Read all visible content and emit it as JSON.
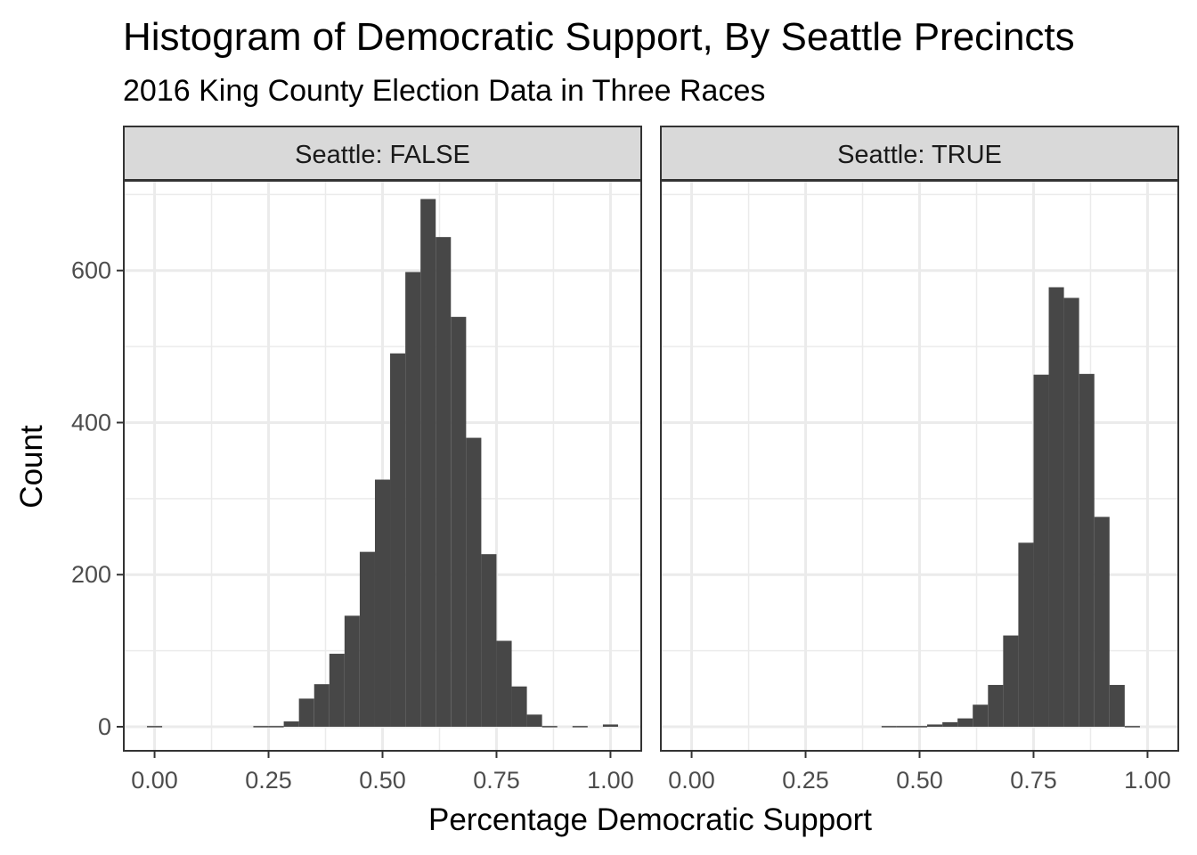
{
  "chart_data": {
    "type": "bar",
    "title": "Histogram of Democratic Support, By Seattle Precincts",
    "subtitle": "2016 King County Election Data in Three Races",
    "xlabel": "Percentage Democratic Support",
    "ylabel": "Count",
    "xlim": [
      -0.0675,
      1.0675
    ],
    "ylim": [
      0,
      725
    ],
    "x_ticks": [
      0,
      0.25,
      0.5,
      0.75,
      1.0
    ],
    "x_tick_labels": [
      "0.00",
      "0.25",
      "0.50",
      "0.75",
      "1.00"
    ],
    "y_ticks": [
      0,
      200,
      400,
      600
    ],
    "y_tick_labels": [
      "0",
      "200",
      "400",
      "600"
    ],
    "bin_width": 0.0333,
    "bin_centers": [
      0.0,
      0.0333,
      0.0667,
      0.1,
      0.1333,
      0.1667,
      0.2,
      0.2333,
      0.2667,
      0.3,
      0.3333,
      0.3667,
      0.4,
      0.4333,
      0.4667,
      0.5,
      0.5333,
      0.5667,
      0.6,
      0.6333,
      0.6667,
      0.7,
      0.7333,
      0.7667,
      0.8,
      0.8333,
      0.8667,
      0.9,
      0.9333,
      0.9667,
      1.0
    ],
    "grid": true,
    "facets": [
      {
        "label": "Seattle: FALSE",
        "counts": [
          1,
          0,
          0,
          0,
          0,
          0,
          0,
          1,
          1,
          7,
          37,
          56,
          96,
          146,
          230,
          325,
          491,
          598,
          694,
          644,
          539,
          380,
          227,
          113,
          53,
          16,
          1,
          0,
          1,
          0,
          3
        ]
      },
      {
        "label": "Seattle: TRUE",
        "counts": [
          0,
          0,
          0,
          0,
          0,
          0,
          0,
          0,
          0,
          0,
          0,
          0,
          0,
          1,
          1,
          1,
          3,
          6,
          11,
          29,
          55,
          120,
          242,
          463,
          578,
          564,
          464,
          276,
          55,
          1,
          0
        ]
      }
    ],
    "colors": {
      "bar": "#474747",
      "grid": "#ebebeb",
      "panel_border": "#333333",
      "strip_fill": "#d9d9d9",
      "tick_text": "#4d4d4d"
    }
  }
}
